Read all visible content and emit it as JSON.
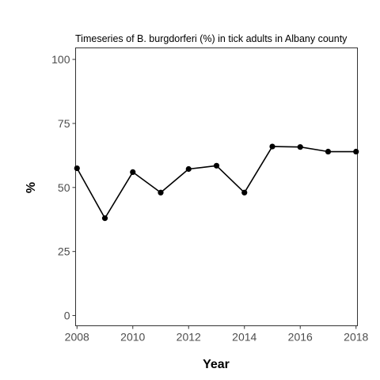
{
  "chart_data": {
    "type": "line",
    "title": "Timeseries of B. burgdorferi (%) in tick adults in Albany county",
    "xlabel": "Year",
    "ylabel": "%",
    "xlim": [
      2007.95,
      2018.05
    ],
    "ylim": [
      -4,
      104.5
    ],
    "xticks": [
      2008,
      2010,
      2012,
      2014,
      2016,
      2018
    ],
    "yticks": [
      0,
      25,
      50,
      75,
      100
    ],
    "grid": false,
    "series": [
      {
        "x": [
          2008,
          2009,
          2010,
          2011,
          2012,
          2013,
          2014,
          2015,
          2016,
          2017,
          2018
        ],
        "y": [
          57.5,
          38,
          56,
          48,
          57.2,
          58.5,
          48,
          66,
          65.8,
          64,
          64
        ]
      }
    ],
    "colors": {
      "line": "#000000",
      "points": "#000000",
      "axis": "#333333",
      "tick_text": "#4d4d4d"
    }
  }
}
